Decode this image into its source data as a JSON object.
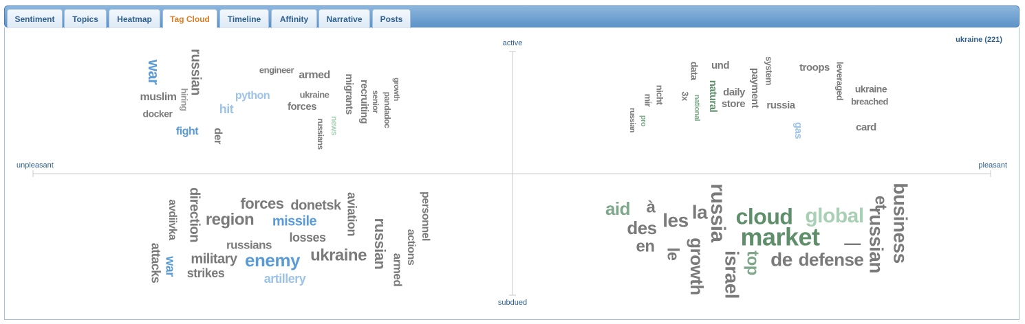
{
  "tabs": [
    "Sentiment",
    "Topics",
    "Heatmap",
    "Tag Cloud",
    "Timeline",
    "Affinity",
    "Narrative",
    "Posts"
  ],
  "header": {
    "title": "ukraine (221)"
  },
  "axes": {
    "top": "active",
    "bottom": "subdued",
    "left": "unpleasant",
    "right": "pleasant"
  },
  "quadrants": [
    {
      "words": [
        "war",
        "russian",
        "muslim",
        "hiring",
        "docker",
        "fight",
        "hit",
        "python",
        "der",
        "engineer",
        "armed",
        "ukraine",
        "forces",
        "russians",
        "news",
        "migrants",
        "recruiting",
        "senior",
        "pandadoc",
        "growth"
      ]
    },
    {
      "words": [
        "data",
        "und",
        "system",
        "payment",
        "troops",
        "leveraged",
        "ukraine",
        "breached",
        "nicht",
        "mir",
        "3x",
        "national",
        "natural",
        "daily",
        "store",
        "russia",
        "russian",
        "pro",
        "gas",
        "card"
      ]
    },
    {
      "words": [
        "avdiivka",
        "direction",
        "attacks",
        "war",
        "region",
        "forces",
        "donetsk",
        "missile",
        "aviation",
        "russians",
        "losses",
        "military",
        "enemy",
        "ukraine",
        "strikes",
        "artillery",
        "russian",
        "armed",
        "actions",
        "personnel"
      ]
    },
    {
      "words": [
        "aid",
        "à",
        "des",
        "en",
        "les",
        "le",
        "la",
        "russia",
        "growth",
        "israel",
        "cloud",
        "market",
        "top",
        "global",
        "et",
        "russian",
        "—",
        "de",
        "defense",
        "business"
      ]
    }
  ]
}
